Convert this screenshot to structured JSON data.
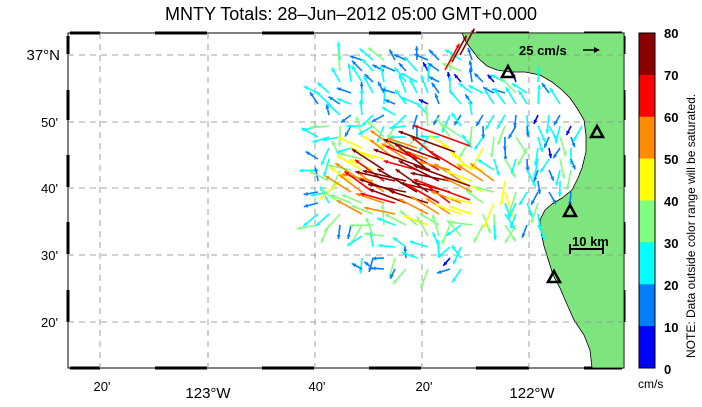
{
  "title": "MNTY Totals: 28–Jun–2012 05:00 GMT+0.000",
  "map": {
    "lat_labels": [
      "37°N",
      "50'",
      "40'",
      "30'",
      "20'"
    ],
    "lon_labels": [
      "20'",
      "123°W",
      "40'",
      "20'",
      "122°W"
    ],
    "land_color": "#7ee57e",
    "scale_vector_label": "25 cm/s",
    "scale_bar_label": "10 km",
    "stations": [
      "station-north",
      "station-east",
      "station-middle",
      "station-south"
    ]
  },
  "colorbar": {
    "ticks": [
      "80",
      "70",
      "60",
      "50",
      "40",
      "30",
      "20",
      "10",
      "0"
    ],
    "unit": "cm/s",
    "note": "NOTE: Data outside color range will be saturated.",
    "colors": [
      "#8b0000",
      "#ff0000",
      "#ff8c00",
      "#ffff00",
      "#80ff80",
      "#00ffff",
      "#0080ff",
      "#0000ff"
    ]
  }
}
